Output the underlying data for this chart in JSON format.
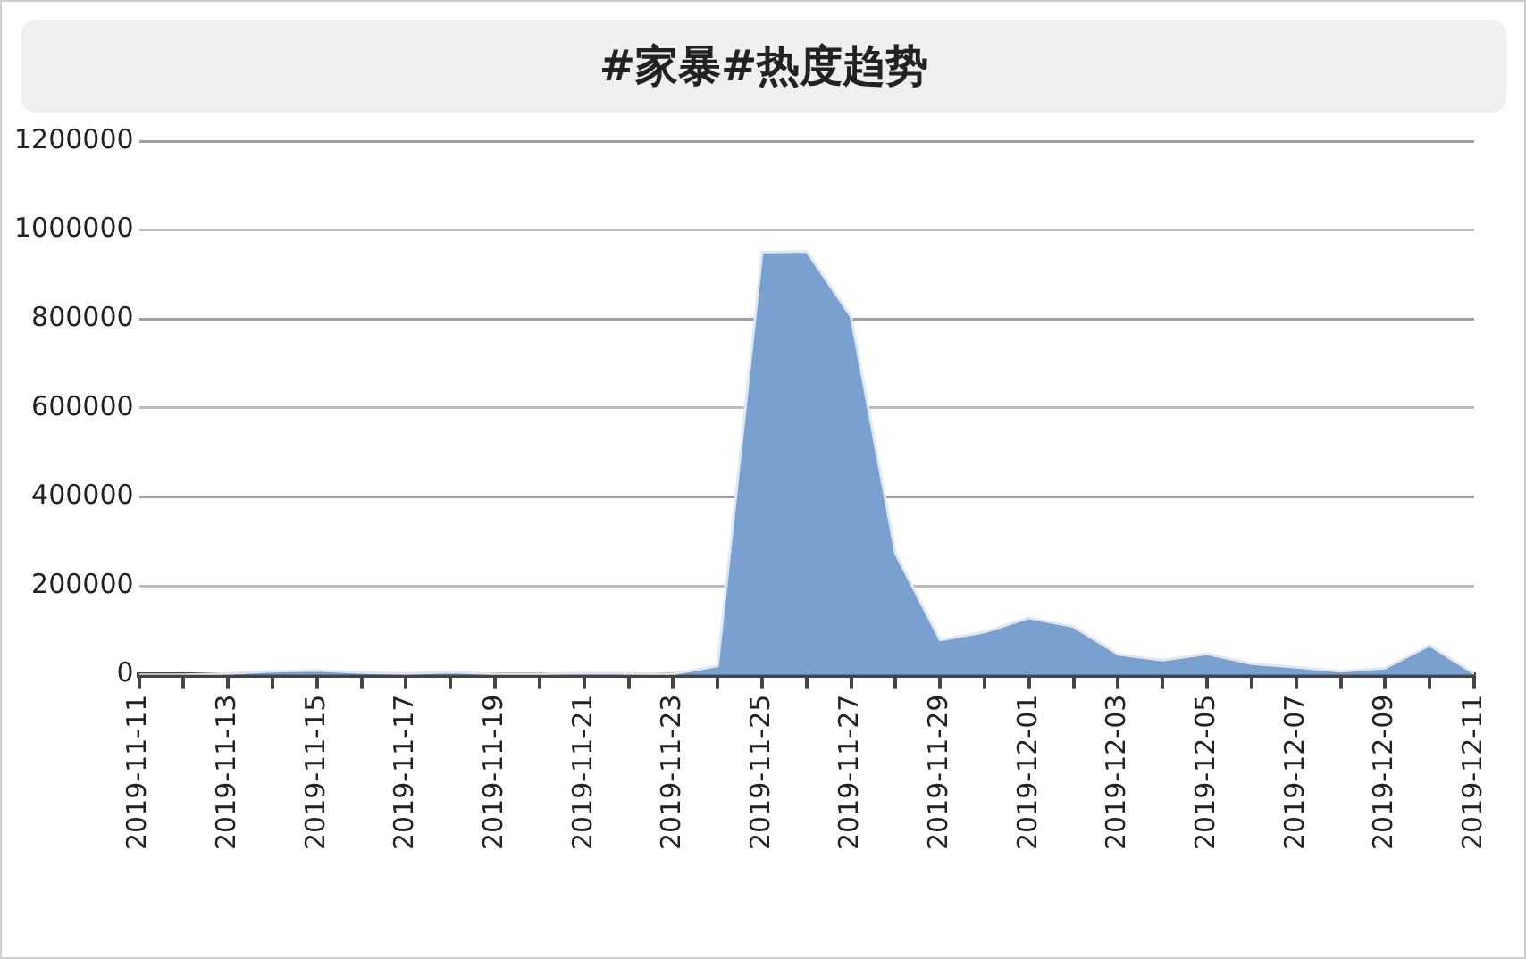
{
  "chart_data": {
    "type": "area",
    "title": "#家暴#热度趋势",
    "x": [
      "2019-11-11",
      "2019-11-12",
      "2019-11-13",
      "2019-11-14",
      "2019-11-15",
      "2019-11-16",
      "2019-11-17",
      "2019-11-18",
      "2019-11-19",
      "2019-11-20",
      "2019-11-21",
      "2019-11-22",
      "2019-11-23",
      "2019-11-24",
      "2019-11-25",
      "2019-11-26",
      "2019-11-27",
      "2019-11-28",
      "2019-11-29",
      "2019-11-30",
      "2019-12-01",
      "2019-12-02",
      "2019-12-03",
      "2019-12-04",
      "2019-12-05",
      "2019-12-06",
      "2019-12-07",
      "2019-12-08",
      "2019-12-09",
      "2019-12-10",
      "2019-12-11"
    ],
    "series": [
      {
        "color": "#7aa0cf",
        "values": [
          0,
          0,
          3000,
          8000,
          10000,
          5000,
          3000,
          6000,
          2000,
          2000,
          4000,
          3000,
          2000,
          20000,
          950000,
          952000,
          805000,
          272000,
          78000,
          96000,
          128000,
          108000,
          46000,
          33000,
          47000,
          25000,
          17000,
          8000,
          15000,
          66000,
          3000
        ]
      }
    ],
    "xlim": [
      "2019-11-11",
      "2019-12-11"
    ],
    "xticks": [
      "2019-11-11",
      {
        "value": "2019-11-12",
        "label": null
      },
      "2019-11-13",
      {
        "value": "2019-11-14",
        "label": null
      },
      "2019-11-15",
      {
        "value": "2019-11-16",
        "label": null
      },
      "2019-11-17",
      {
        "value": "2019-11-18",
        "label": null
      },
      "2019-11-19",
      {
        "value": "2019-11-20",
        "label": null
      },
      "2019-11-21",
      {
        "value": "2019-11-22",
        "label": null
      },
      "2019-11-23",
      {
        "value": "2019-11-24",
        "label": null
      },
      "2019-11-25",
      {
        "value": "2019-11-26",
        "label": null
      },
      "2019-11-27",
      {
        "value": "2019-11-28",
        "label": null
      },
      "2019-11-29",
      {
        "value": "2019-11-30",
        "label": null
      },
      "2019-12-01",
      {
        "value": "2019-12-02",
        "label": null
      },
      "2019-12-03",
      {
        "value": "2019-12-04",
        "label": null
      },
      "2019-12-05",
      {
        "value": "2019-12-06",
        "label": null
      },
      "2019-12-07",
      {
        "value": "2019-12-08",
        "label": null
      },
      "2019-12-09",
      {
        "value": "2019-12-10",
        "label": null
      },
      "2019-12-11"
    ],
    "ylim": [
      0,
      1200000
    ],
    "yticks": [
      0,
      200000,
      400000,
      600000,
      800000,
      1000000,
      1200000
    ],
    "grid": "y",
    "legend": false
  }
}
